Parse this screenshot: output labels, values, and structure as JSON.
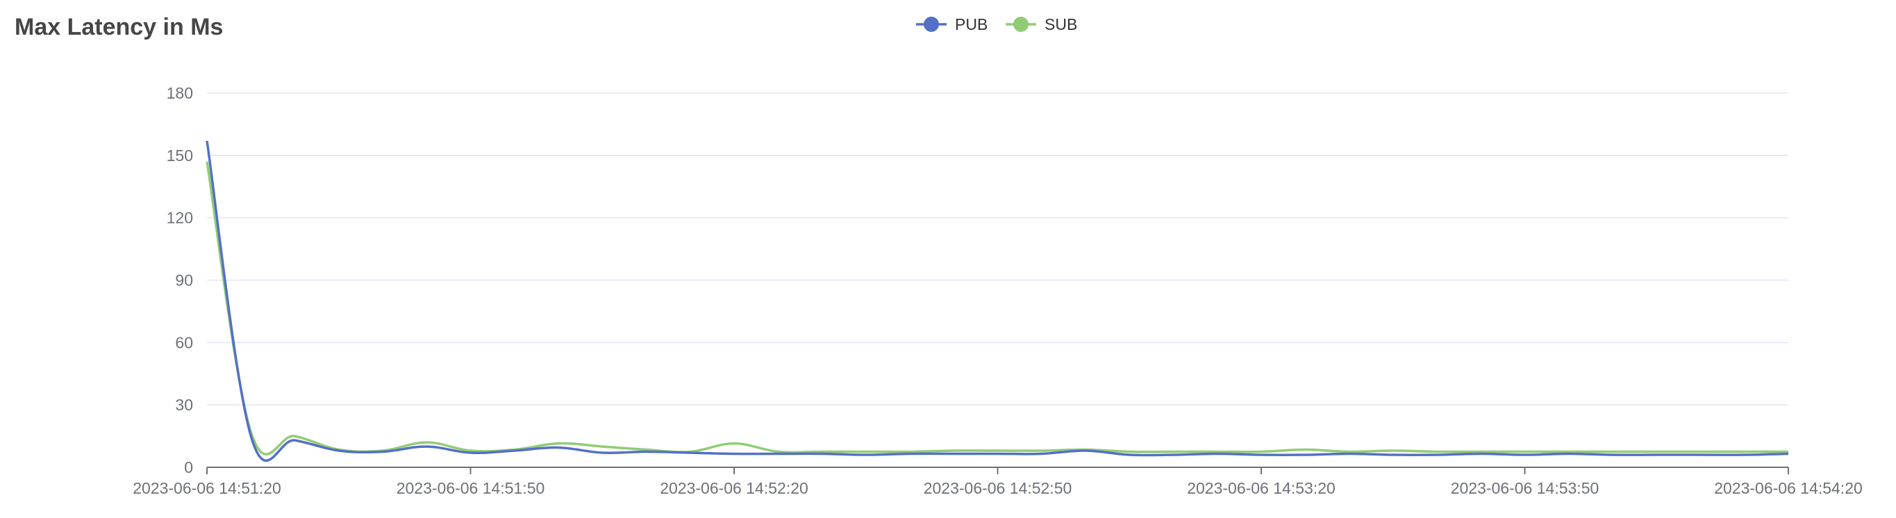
{
  "chart_data": {
    "type": "line",
    "title": "Max Latency in Ms",
    "xlabel": "",
    "ylabel": "",
    "ylim": [
      0,
      180
    ],
    "y_ticks": [
      0,
      30,
      60,
      90,
      120,
      150,
      180
    ],
    "x_tick_labels": [
      "2023-06-06 14:51:20",
      "2023-06-06 14:51:50",
      "2023-06-06 14:52:20",
      "2023-06-06 14:52:50",
      "2023-06-06 14:53:20",
      "2023-06-06 14:53:50",
      "2023-06-06 14:54:20"
    ],
    "xlim": [
      "2023-06-06 14:51:20",
      "2023-06-06 14:54:20"
    ],
    "grid": true,
    "legend": "top-center",
    "x": [
      "2023-06-06 14:51:20",
      "2023-06-06 14:51:25",
      "2023-06-06 14:51:30",
      "2023-06-06 14:51:35",
      "2023-06-06 14:51:40",
      "2023-06-06 14:51:45",
      "2023-06-06 14:51:50",
      "2023-06-06 14:51:55",
      "2023-06-06 14:52:00",
      "2023-06-06 14:52:05",
      "2023-06-06 14:52:10",
      "2023-06-06 14:52:15",
      "2023-06-06 14:52:20",
      "2023-06-06 14:52:25",
      "2023-06-06 14:52:30",
      "2023-06-06 14:52:35",
      "2023-06-06 14:52:40",
      "2023-06-06 14:52:45",
      "2023-06-06 14:52:50",
      "2023-06-06 14:52:55",
      "2023-06-06 14:53:00",
      "2023-06-06 14:53:05",
      "2023-06-06 14:53:10",
      "2023-06-06 14:53:15",
      "2023-06-06 14:53:20",
      "2023-06-06 14:53:25",
      "2023-06-06 14:53:30",
      "2023-06-06 14:53:35",
      "2023-06-06 14:53:40",
      "2023-06-06 14:53:45",
      "2023-06-06 14:53:50",
      "2023-06-06 14:53:55",
      "2023-06-06 14:54:00",
      "2023-06-06 14:54:05",
      "2023-06-06 14:54:10",
      "2023-06-06 14:54:15",
      "2023-06-06 14:54:20"
    ],
    "series": [
      {
        "name": "PUB",
        "color": "#5470c6",
        "values": [
          157,
          15,
          13,
          8,
          7.5,
          10,
          7,
          8,
          9.5,
          7,
          7.5,
          7,
          6.5,
          6.5,
          6.5,
          6,
          6.5,
          6.5,
          6.5,
          6.5,
          8,
          6,
          6,
          6.5,
          6,
          6,
          6.5,
          6,
          6,
          6.5,
          6,
          6.5,
          6,
          6,
          6,
          6,
          6.5
        ]
      },
      {
        "name": "SUB",
        "color": "#91cc75",
        "values": [
          147,
          17,
          15,
          8.5,
          8,
          12,
          8,
          8.5,
          11.5,
          10,
          8.5,
          7.5,
          11.5,
          7.5,
          7.5,
          7.5,
          7.5,
          8,
          8,
          8,
          8.5,
          7.5,
          7.5,
          7.5,
          7.5,
          8.5,
          7.5,
          8,
          7.5,
          7.5,
          7.5,
          7.5,
          7.5,
          7.5,
          7.5,
          7.5,
          7.5
        ]
      }
    ]
  }
}
